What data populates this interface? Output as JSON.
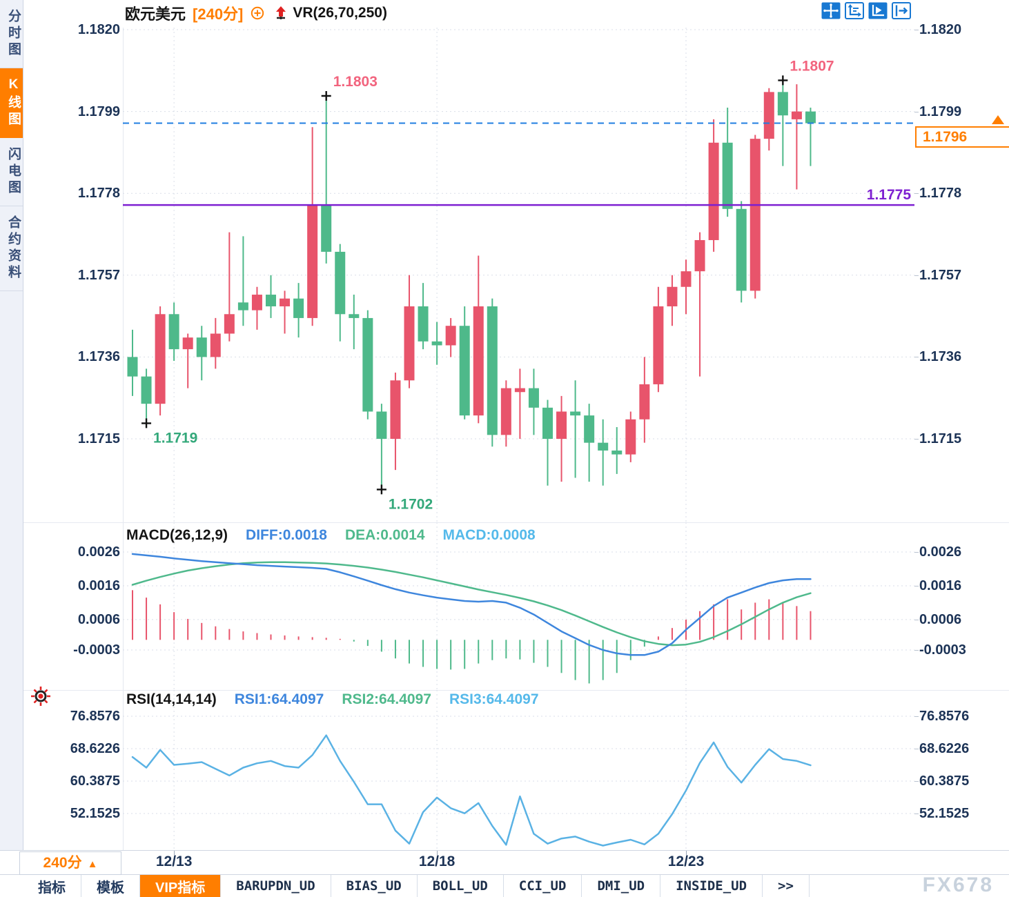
{
  "colors": {
    "up": "#e8546b",
    "down": "#4eb98a",
    "accent_orange": "#ff7e00",
    "icon_blue": "#1878d2",
    "last_price_blue": "#1f7de0",
    "support_purple": "#7d1fd1",
    "axis_text": "#1c3356",
    "grid": "#d9dee8",
    "pink_label": "#f2647e",
    "green_label": "#33a87a",
    "diff_blue": "#3e86dd",
    "dea_green": "#4fb98c",
    "macd_cyan": "#55b9ea",
    "rsi_line": "#5ab2e4",
    "watermark_gray": "#c8d2dd"
  },
  "sidebar": {
    "items": [
      {
        "label": "分时图",
        "active": false
      },
      {
        "label": "K线图",
        "active": true
      },
      {
        "label": "闪电图",
        "active": false
      },
      {
        "label": "合约资料",
        "active": false
      }
    ]
  },
  "header": {
    "symbol": "欧元美元",
    "period": "[240分]",
    "indicator": "VR(26,70,250)",
    "toolbar_icons": [
      "crosshair-icon",
      "axis-range-icon",
      "axis-play-icon",
      "pan-exit-icon"
    ]
  },
  "macd_header": {
    "name": "MACD(26,12,9)",
    "diff": "DIFF:0.0018",
    "dea": "DEA:0.0014",
    "macd": "MACD:0.0008"
  },
  "rsi_header": {
    "name": "RSI(14,14,14)",
    "rsi1": "RSI1:64.4097",
    "rsi2": "RSI2:64.4097",
    "rsi3": "RSI3:64.4097"
  },
  "bottom": {
    "timeframe": "240分",
    "watermark": "FX678",
    "tabs": [
      {
        "label": "指标",
        "active": false,
        "mono": false
      },
      {
        "label": "模板",
        "active": false,
        "mono": false
      },
      {
        "label": "VIP指标",
        "active": true,
        "mono": false
      },
      {
        "label": "BARUPDN_UD",
        "active": false,
        "mono": true
      },
      {
        "label": "BIAS_UD",
        "active": false,
        "mono": true
      },
      {
        "label": "BOLL_UD",
        "active": false,
        "mono": true
      },
      {
        "label": "CCI_UD",
        "active": false,
        "mono": true
      },
      {
        "label": "DMI_UD",
        "active": false,
        "mono": true
      },
      {
        "label": "INSIDE_UD",
        "active": false,
        "mono": true
      },
      {
        "label": ">>",
        "active": false,
        "mono": true
      }
    ]
  },
  "chart_data": [
    {
      "type": "candlestick",
      "title": "欧元美元 [240分]",
      "ylim": [
        1.1695,
        1.1822
      ],
      "yticks": [
        "1.1820",
        "1.1799",
        "1.1778",
        "1.1757",
        "1.1736",
        "1.1715"
      ],
      "x_labels": [
        {
          "index": 3,
          "label": "12/13"
        },
        {
          "index": 22,
          "label": "12/18"
        },
        {
          "index": 40,
          "label": "12/23"
        }
      ],
      "last_price_line": {
        "price": 1.1796,
        "box_label": "1.1796",
        "style": "dashed"
      },
      "hlines": [
        {
          "price": 1.1775,
          "label": "1.1775",
          "style": "solid"
        }
      ],
      "annotations": [
        {
          "index": 1,
          "price": 1.1719,
          "text": "1.1719",
          "placement": "below",
          "color": "#33a87a"
        },
        {
          "index": 14,
          "price": 1.1803,
          "text": "1.1803",
          "placement": "above",
          "color": "#f2647e"
        },
        {
          "index": 18,
          "price": 1.1702,
          "text": "1.1702",
          "placement": "below",
          "color": "#33a87a"
        },
        {
          "index": 47,
          "price": 1.1807,
          "text": "1.1807",
          "placement": "above",
          "color": "#f2647e"
        }
      ],
      "ohlc": [
        [
          1.1736,
          1.1743,
          1.1726,
          1.1731
        ],
        [
          1.1731,
          1.1733,
          1.1719,
          1.1724
        ],
        [
          1.1724,
          1.1749,
          1.1721,
          1.1747
        ],
        [
          1.1747,
          1.175,
          1.1735,
          1.1738
        ],
        [
          1.1738,
          1.1742,
          1.1728,
          1.1741
        ],
        [
          1.1741,
          1.1744,
          1.173,
          1.1736
        ],
        [
          1.1736,
          1.1746,
          1.1733,
          1.1742
        ],
        [
          1.1742,
          1.1768,
          1.174,
          1.1747
        ],
        [
          1.175,
          1.1767,
          1.1744,
          1.1748
        ],
        [
          1.1748,
          1.1754,
          1.1743,
          1.1752
        ],
        [
          1.1752,
          1.1757,
          1.1746,
          1.1749
        ],
        [
          1.1749,
          1.1753,
          1.1742,
          1.1751
        ],
        [
          1.1751,
          1.1755,
          1.1741,
          1.1746
        ],
        [
          1.1746,
          1.1795,
          1.1744,
          1.1775
        ],
        [
          1.1775,
          1.1803,
          1.176,
          1.1763
        ],
        [
          1.1763,
          1.1765,
          1.174,
          1.1747
        ],
        [
          1.1747,
          1.1752,
          1.1738,
          1.1746
        ],
        [
          1.1746,
          1.1748,
          1.172,
          1.1722
        ],
        [
          1.1722,
          1.1724,
          1.1702,
          1.1715
        ],
        [
          1.1715,
          1.1732,
          1.1707,
          1.173
        ],
        [
          1.173,
          1.1757,
          1.1728,
          1.1749
        ],
        [
          1.1749,
          1.1755,
          1.1738,
          1.174
        ],
        [
          1.174,
          1.1745,
          1.1734,
          1.1739
        ],
        [
          1.1739,
          1.1746,
          1.1736,
          1.1744
        ],
        [
          1.1744,
          1.1749,
          1.172,
          1.1721
        ],
        [
          1.1721,
          1.1762,
          1.1719,
          1.1749
        ],
        [
          1.1749,
          1.1751,
          1.1713,
          1.1716
        ],
        [
          1.1716,
          1.173,
          1.1713,
          1.1728
        ],
        [
          1.1727,
          1.1733,
          1.1715,
          1.1728
        ],
        [
          1.1728,
          1.1733,
          1.1716,
          1.1723
        ],
        [
          1.1723,
          1.1725,
          1.1703,
          1.1715
        ],
        [
          1.1715,
          1.1726,
          1.1704,
          1.1722
        ],
        [
          1.1722,
          1.173,
          1.1705,
          1.1721
        ],
        [
          1.1721,
          1.1724,
          1.1704,
          1.1714
        ],
        [
          1.1714,
          1.172,
          1.1703,
          1.1712
        ],
        [
          1.1712,
          1.1718,
          1.1706,
          1.1711
        ],
        [
          1.1711,
          1.1722,
          1.1709,
          1.172
        ],
        [
          1.172,
          1.1736,
          1.1714,
          1.1729
        ],
        [
          1.1729,
          1.1754,
          1.1727,
          1.1749
        ],
        [
          1.1749,
          1.1757,
          1.1744,
          1.1754
        ],
        [
          1.1754,
          1.1761,
          1.1747,
          1.1758
        ],
        [
          1.1758,
          1.1768,
          1.1731,
          1.1766
        ],
        [
          1.1766,
          1.1797,
          1.1763,
          1.1791
        ],
        [
          1.1791,
          1.18,
          1.1772,
          1.1774
        ],
        [
          1.1774,
          1.1776,
          1.175,
          1.1753
        ],
        [
          1.1753,
          1.1793,
          1.1751,
          1.1792
        ],
        [
          1.1792,
          1.1805,
          1.1789,
          1.1804
        ],
        [
          1.1804,
          1.1807,
          1.1785,
          1.1798
        ],
        [
          1.1797,
          1.1806,
          1.1779,
          1.1799
        ],
        [
          1.1799,
          1.18,
          1.1785,
          1.1796
        ]
      ]
    },
    {
      "type": "macd",
      "params": "MACD(26,12,9)",
      "values": {
        "diff": 0.0018,
        "dea": 0.0014,
        "macd": 0.0008
      },
      "yticks": [
        "0.0026",
        "0.0016",
        "0.0006",
        "-0.0003"
      ],
      "diff": [
        0.00254,
        0.0025,
        0.00246,
        0.00241,
        0.00237,
        0.00233,
        0.0023,
        0.00227,
        0.00224,
        0.00221,
        0.00219,
        0.00217,
        0.00215,
        0.00213,
        0.0021,
        0.002,
        0.00188,
        0.00175,
        0.00162,
        0.0015,
        0.0014,
        0.00132,
        0.00125,
        0.0012,
        0.00115,
        0.00113,
        0.00115,
        0.0011,
        0.00095,
        0.00075,
        0.0005,
        0.00025,
        5e-05,
        -0.00015,
        -0.0003,
        -0.0004,
        -0.00045,
        -0.00045,
        -0.00035,
        -0.0001,
        0.0003,
        0.00065,
        0.001,
        0.00125,
        0.0014,
        0.00155,
        0.00168,
        0.00176,
        0.0018,
        0.0018
      ],
      "dea": [
        0.00163,
        0.00175,
        0.00186,
        0.00196,
        0.00205,
        0.00212,
        0.00218,
        0.00223,
        0.00227,
        0.00229,
        0.0023,
        0.0023,
        0.00229,
        0.00228,
        0.00226,
        0.00223,
        0.00219,
        0.00214,
        0.00208,
        0.00201,
        0.00193,
        0.00185,
        0.00176,
        0.00167,
        0.00158,
        0.00149,
        0.00141,
        0.00133,
        0.00124,
        0.00114,
        0.00102,
        0.00088,
        0.00072,
        0.00055,
        0.00038,
        0.00022,
        8e-05,
        -4e-05,
        -0.00012,
        -0.00016,
        -0.00014,
        -6e-05,
        8e-05,
        0.00026,
        0.00046,
        0.00068,
        0.0009,
        0.0011,
        0.00126,
        0.00138
      ],
      "hist": [
        0.00147,
        0.00125,
        0.00105,
        0.00082,
        0.00062,
        0.0005,
        0.0004,
        0.00032,
        0.00025,
        0.0002,
        0.00016,
        0.00013,
        0.0001,
        8e-05,
        6e-05,
        3e-05,
        -5e-05,
        -0.00018,
        -0.00035,
        -0.00055,
        -0.0007,
        -0.0008,
        -0.00086,
        -0.00088,
        -0.00086,
        -0.0007,
        -0.0006,
        -0.00055,
        -0.00058,
        -0.00068,
        -0.0008,
        -0.00098,
        -0.00119,
        -0.00129,
        -0.00119,
        -0.00098,
        -0.0006,
        -0.0002,
        0.0001,
        0.00035,
        0.0006,
        0.00085,
        0.00105,
        0.0012,
        0.0009,
        0.0011,
        0.0012,
        0.0011,
        0.001,
        0.00085
      ]
    },
    {
      "type": "line",
      "params": "RSI(14,14,14)",
      "values": {
        "rsi1": 64.4097,
        "rsi2": 64.4097,
        "rsi3": 64.4097
      },
      "yticks": [
        "76.8576",
        "68.6226",
        "60.3875",
        "52.1525"
      ],
      "rsi": [
        66.5,
        63.8,
        68.3,
        64.5,
        64.8,
        65.2,
        63.5,
        61.8,
        63.8,
        64.9,
        65.5,
        64.2,
        63.8,
        67.0,
        72.0,
        65.5,
        60.2,
        54.5,
        54.5,
        47.8,
        44.5,
        52.5,
        56.2,
        53.5,
        52.2,
        54.8,
        49.0,
        44.2,
        56.5,
        47.0,
        44.5,
        45.8,
        46.3,
        45.0,
        44.0,
        44.8,
        45.5,
        44.3,
        47.0,
        52.0,
        58.0,
        65.0,
        70.2,
        64.0,
        60.0,
        64.5,
        68.5,
        66.0,
        65.5,
        64.4
      ]
    }
  ]
}
